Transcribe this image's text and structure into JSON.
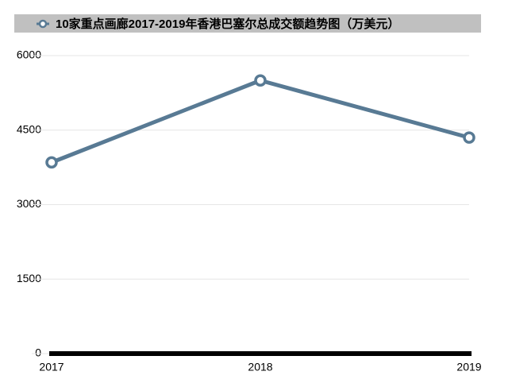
{
  "chart_data": {
    "type": "line",
    "categories": [
      "2017",
      "2018",
      "2019"
    ],
    "series": [
      {
        "name": "10家重点画廊2017-2019年香港巴塞尔总成交额趋势图（万美元）",
        "color": "#587a94",
        "values": [
          3850,
          5500,
          4350
        ]
      }
    ],
    "ylim": [
      0,
      6000
    ],
    "yticks": [
      0,
      1500,
      3000,
      4500,
      6000
    ],
    "grid": true,
    "legend": "top"
  }
}
